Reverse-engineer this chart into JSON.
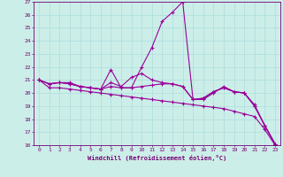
{
  "xlabel": "Windchill (Refroidissement éolien,°C)",
  "background_color": "#cceee8",
  "line_color": "#990099",
  "x_values": [
    0,
    1,
    2,
    3,
    4,
    5,
    6,
    7,
    8,
    9,
    10,
    11,
    12,
    13,
    14,
    15,
    16,
    17,
    18,
    19,
    20,
    21,
    22,
    23
  ],
  "series": [
    [
      21.0,
      20.7,
      20.8,
      20.8,
      20.5,
      20.4,
      20.3,
      21.8,
      20.4,
      20.4,
      22.0,
      23.5,
      25.5,
      26.2,
      27.0,
      19.5,
      19.5,
      20.0,
      20.5,
      20.1,
      20.0,
      19.1,
      17.5,
      16.1
    ],
    [
      21.0,
      20.7,
      20.8,
      20.7,
      20.5,
      20.4,
      20.3,
      20.8,
      20.5,
      21.2,
      21.5,
      21.0,
      20.8,
      20.7,
      20.5,
      19.5,
      19.6,
      20.1,
      20.4,
      20.1,
      20.0,
      19.0,
      17.5,
      16.1
    ],
    [
      21.0,
      20.7,
      20.8,
      20.7,
      20.5,
      20.4,
      20.3,
      20.5,
      20.4,
      20.4,
      20.5,
      20.6,
      20.7,
      20.7,
      20.5,
      19.5,
      19.6,
      20.1,
      20.4,
      20.1,
      20.0,
      19.0,
      17.5,
      16.1
    ],
    [
      21.0,
      20.4,
      20.4,
      20.3,
      20.2,
      20.1,
      20.0,
      19.9,
      19.8,
      19.7,
      19.6,
      19.5,
      19.4,
      19.3,
      19.2,
      19.1,
      19.0,
      18.9,
      18.8,
      18.6,
      18.4,
      18.2,
      17.2,
      16.0
    ]
  ],
  "ylim": [
    16,
    27
  ],
  "xlim_min": -0.5,
  "xlim_max": 23.5,
  "yticks": [
    16,
    17,
    18,
    19,
    20,
    21,
    22,
    23,
    24,
    25,
    26,
    27
  ],
  "xticks": [
    0,
    1,
    2,
    3,
    4,
    5,
    6,
    7,
    8,
    9,
    10,
    11,
    12,
    13,
    14,
    15,
    16,
    17,
    18,
    19,
    20,
    21,
    22,
    23
  ],
  "grid_color": "#aadddd",
  "font_color": "#770077",
  "marker": "+",
  "markersize": 3,
  "linewidth": 0.8,
  "tick_fontsize": 4.5,
  "xlabel_fontsize": 5.0
}
